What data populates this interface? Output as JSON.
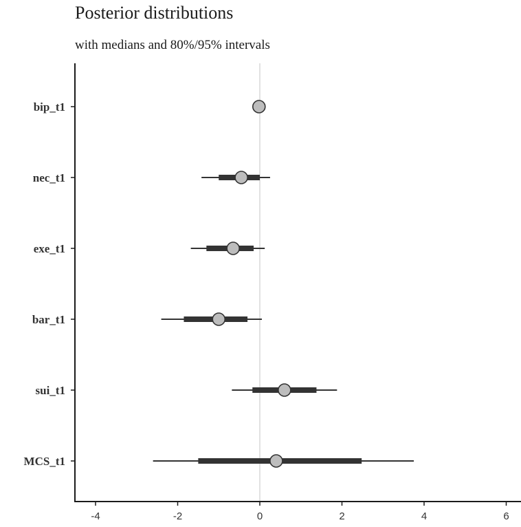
{
  "chart_data": {
    "type": "interval",
    "title": "Posterior distributions",
    "subtitle": "with medians and 80%/95% intervals",
    "xlim": [
      -4.5,
      6.2
    ],
    "xticks": [
      -4,
      -2,
      0,
      2,
      4,
      6
    ],
    "reference_line_x": 0,
    "grid": false,
    "parameters": [
      {
        "label": "bip_t1",
        "median": -0.02,
        "inner": [
          -0.02,
          -0.02
        ],
        "outer": [
          -0.02,
          -0.02
        ]
      },
      {
        "label": "nec_t1",
        "median": -0.45,
        "inner": [
          -1.0,
          0.0
        ],
        "outer": [
          -1.42,
          0.25
        ]
      },
      {
        "label": "exe_t1",
        "median": -0.65,
        "inner": [
          -1.3,
          -0.15
        ],
        "outer": [
          -1.68,
          0.12
        ]
      },
      {
        "label": "bar_t1",
        "median": -1.0,
        "inner": [
          -1.85,
          -0.3
        ],
        "outer": [
          -2.4,
          0.05
        ]
      },
      {
        "label": "sui_t1",
        "median": 0.6,
        "inner": [
          -0.18,
          1.38
        ],
        "outer": [
          -0.68,
          1.88
        ]
      },
      {
        "label": "MCS_t1",
        "median": 0.4,
        "inner": [
          -1.5,
          2.48
        ],
        "outer": [
          -2.6,
          3.75
        ]
      }
    ],
    "colors": {
      "point_fill": "#bdbdbd",
      "point_stroke": "#333333",
      "interval": "#333333",
      "reference_line": "#d9d9d9",
      "axis": "#1a1a1a"
    }
  }
}
